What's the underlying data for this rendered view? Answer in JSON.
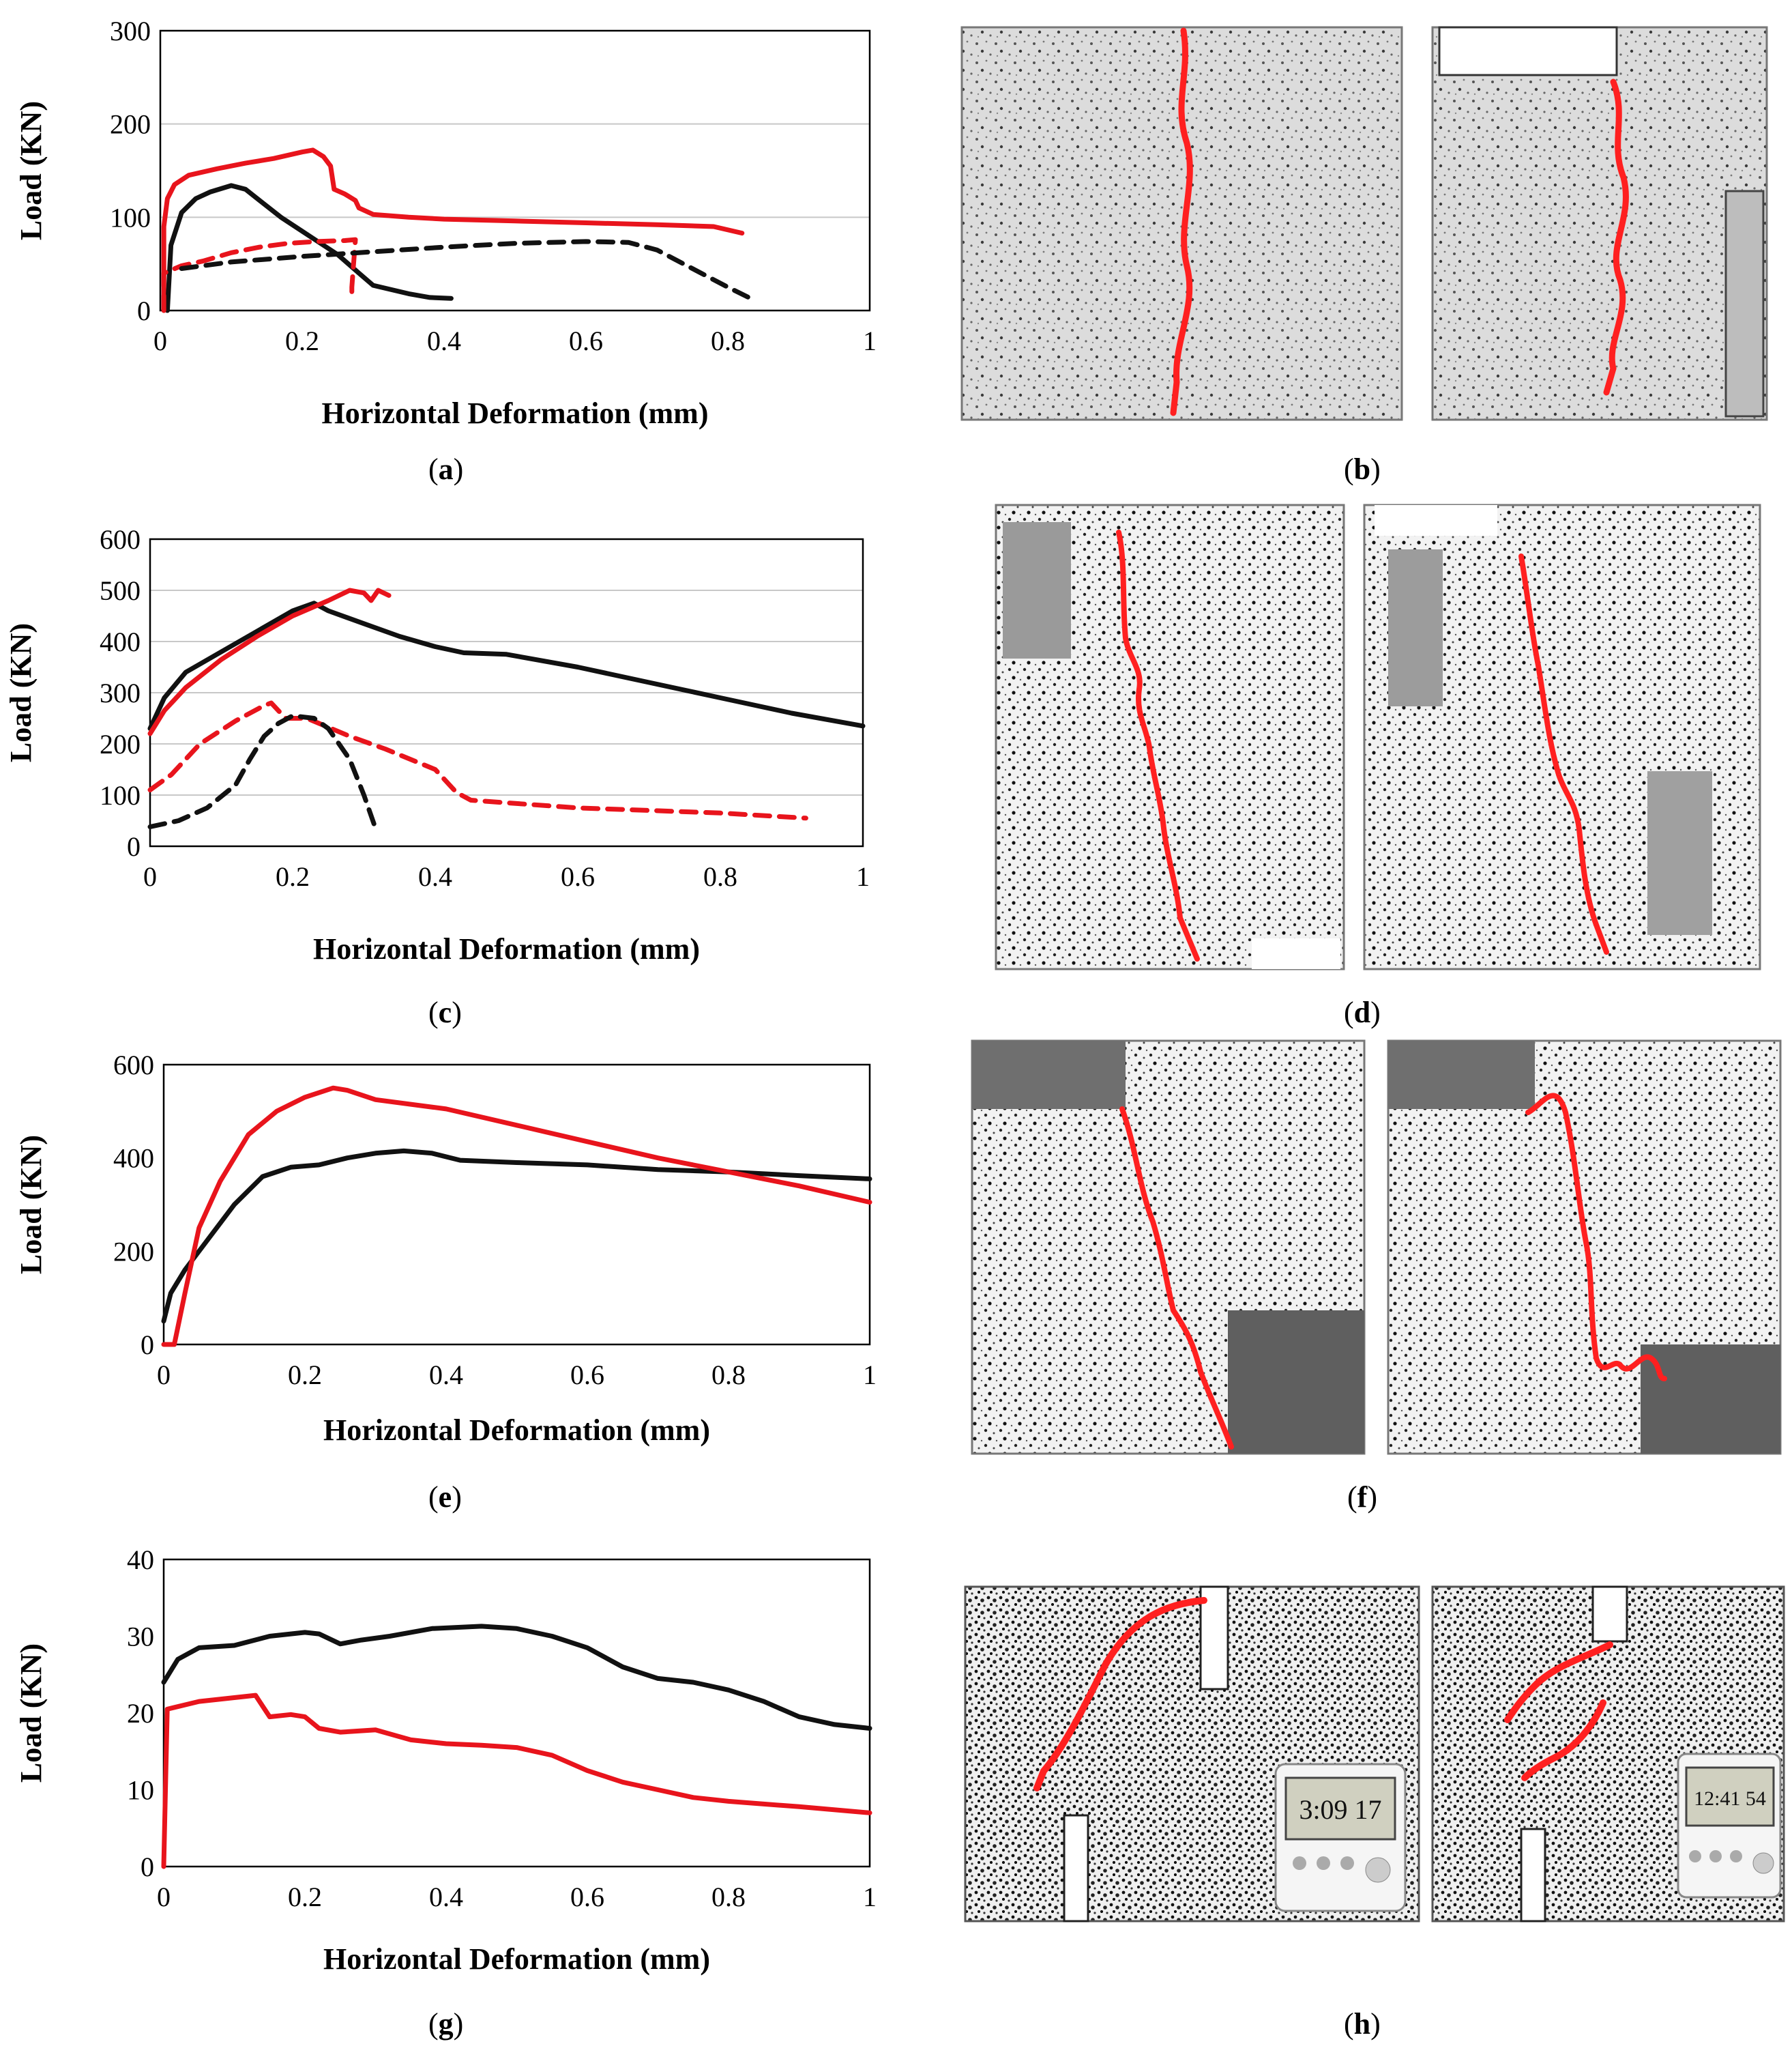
{
  "chart_data": [
    {
      "id": "a",
      "type": "line",
      "caption_letter": "a",
      "xlabel": "Horizontal Deformation (mm)",
      "ylabel": "Load (KN)",
      "xlim": [
        0,
        1
      ],
      "ylim": [
        0,
        300
      ],
      "xticks": [
        0,
        0.2,
        0.4,
        0.6,
        0.8,
        1
      ],
      "yticks": [
        0,
        100,
        200,
        300
      ],
      "xtick_labels": [
        "0",
        "0.2",
        "0.4",
        "0.6",
        "0.8",
        "1"
      ],
      "ytick_labels": [
        "0",
        "100",
        "200",
        "300"
      ],
      "grid": true,
      "series": [
        {
          "name": "red solid",
          "color": "#e8141c",
          "dash": false,
          "points": [
            [
              0.005,
              0
            ],
            [
              0.005,
              90
            ],
            [
              0.01,
              120
            ],
            [
              0.02,
              135
            ],
            [
              0.04,
              145
            ],
            [
              0.08,
              152
            ],
            [
              0.12,
              158
            ],
            [
              0.16,
              163
            ],
            [
              0.2,
              170
            ],
            [
              0.215,
              172
            ],
            [
              0.23,
              165
            ],
            [
              0.24,
              155
            ],
            [
              0.245,
              130
            ],
            [
              0.26,
              125
            ],
            [
              0.275,
              118
            ],
            [
              0.28,
              110
            ],
            [
              0.3,
              103
            ],
            [
              0.35,
              100
            ],
            [
              0.4,
              98
            ],
            [
              0.5,
              96
            ],
            [
              0.6,
              94
            ],
            [
              0.7,
              92
            ],
            [
              0.78,
              90
            ],
            [
              0.82,
              83
            ]
          ]
        },
        {
          "name": "black solid",
          "color": "#111111",
          "dash": false,
          "points": [
            [
              0.01,
              0
            ],
            [
              0.015,
              70
            ],
            [
              0.03,
              105
            ],
            [
              0.05,
              120
            ],
            [
              0.07,
              127
            ],
            [
              0.1,
              134
            ],
            [
              0.12,
              130
            ],
            [
              0.14,
              118
            ],
            [
              0.17,
              100
            ],
            [
              0.2,
              85
            ],
            [
              0.22,
              75
            ],
            [
              0.25,
              60
            ],
            [
              0.28,
              40
            ],
            [
              0.3,
              27
            ],
            [
              0.35,
              18
            ],
            [
              0.38,
              14
            ],
            [
              0.41,
              13
            ]
          ]
        },
        {
          "name": "red dashed",
          "color": "#e8141c",
          "dash": true,
          "points": [
            [
              0.005,
              0
            ],
            [
              0.005,
              40
            ],
            [
              0.03,
              48
            ],
            [
              0.06,
              53
            ],
            [
              0.1,
              62
            ],
            [
              0.14,
              68
            ],
            [
              0.18,
              72
            ],
            [
              0.22,
              74
            ],
            [
              0.26,
              75
            ],
            [
              0.275,
              76
            ],
            [
              0.27,
              25
            ],
            [
              0.27,
              12
            ]
          ]
        },
        {
          "name": "black dashed",
          "color": "#111111",
          "dash": true,
          "points": [
            [
              0.03,
              45
            ],
            [
              0.1,
              52
            ],
            [
              0.2,
              58
            ],
            [
              0.3,
              63
            ],
            [
              0.4,
              68
            ],
            [
              0.5,
              72
            ],
            [
              0.6,
              74
            ],
            [
              0.66,
              73
            ],
            [
              0.7,
              65
            ],
            [
              0.75,
              45
            ],
            [
              0.8,
              25
            ],
            [
              0.84,
              10
            ]
          ]
        }
      ]
    },
    {
      "id": "c",
      "type": "line",
      "caption_letter": "c",
      "xlabel": "Horizontal Deformation (mm)",
      "ylabel": "Load (KN)",
      "xlim": [
        0,
        1
      ],
      "ylim": [
        0,
        600
      ],
      "xticks": [
        0,
        0.2,
        0.4,
        0.6,
        0.8,
        1
      ],
      "yticks": [
        0,
        100,
        200,
        300,
        400,
        500,
        600
      ],
      "xtick_labels": [
        "0",
        "0.2",
        "0.4",
        "0.6",
        "0.8",
        "1"
      ],
      "ytick_labels": [
        "0",
        "100",
        "200",
        "300",
        "400",
        "500",
        "600"
      ],
      "grid": true,
      "series": [
        {
          "name": "black solid",
          "color": "#111111",
          "dash": false,
          "points": [
            [
              0,
              230
            ],
            [
              0.02,
              290
            ],
            [
              0.05,
              340
            ],
            [
              0.1,
              380
            ],
            [
              0.15,
              420
            ],
            [
              0.2,
              460
            ],
            [
              0.23,
              475
            ],
            [
              0.25,
              460
            ],
            [
              0.3,
              435
            ],
            [
              0.35,
              410
            ],
            [
              0.4,
              390
            ],
            [
              0.44,
              378
            ],
            [
              0.5,
              375
            ],
            [
              0.6,
              350
            ],
            [
              0.7,
              320
            ],
            [
              0.8,
              290
            ],
            [
              0.9,
              260
            ],
            [
              1,
              235
            ]
          ]
        },
        {
          "name": "red solid",
          "color": "#e8141c",
          "dash": false,
          "points": [
            [
              0,
              220
            ],
            [
              0.02,
              265
            ],
            [
              0.05,
              310
            ],
            [
              0.1,
              365
            ],
            [
              0.15,
              410
            ],
            [
              0.2,
              450
            ],
            [
              0.25,
              480
            ],
            [
              0.28,
              500
            ],
            [
              0.3,
              495
            ],
            [
              0.31,
              480
            ],
            [
              0.32,
              500
            ],
            [
              0.335,
              490
            ]
          ]
        },
        {
          "name": "red dashed",
          "color": "#e8141c",
          "dash": true,
          "points": [
            [
              0,
              110
            ],
            [
              0.03,
              140
            ],
            [
              0.07,
              200
            ],
            [
              0.12,
              245
            ],
            [
              0.16,
              275
            ],
            [
              0.17,
              280
            ],
            [
              0.19,
              250
            ],
            [
              0.22,
              250
            ],
            [
              0.28,
              215
            ],
            [
              0.33,
              190
            ],
            [
              0.4,
              150
            ],
            [
              0.43,
              105
            ],
            [
              0.45,
              90
            ],
            [
              0.5,
              85
            ],
            [
              0.6,
              75
            ],
            [
              0.7,
              70
            ],
            [
              0.8,
              65
            ],
            [
              0.92,
              55
            ]
          ]
        },
        {
          "name": "black dashed",
          "color": "#111111",
          "dash": true,
          "points": [
            [
              0,
              38
            ],
            [
              0.04,
              50
            ],
            [
              0.08,
              75
            ],
            [
              0.12,
              120
            ],
            [
              0.14,
              170
            ],
            [
              0.16,
              215
            ],
            [
              0.18,
              240
            ],
            [
              0.2,
              255
            ],
            [
              0.23,
              250
            ],
            [
              0.25,
              230
            ],
            [
              0.28,
              170
            ],
            [
              0.3,
              100
            ],
            [
              0.315,
              40
            ]
          ]
        }
      ]
    },
    {
      "id": "e",
      "type": "line",
      "caption_letter": "e",
      "xlabel": "Horizontal Deformation (mm)",
      "ylabel": "Load (KN)",
      "xlim": [
        0,
        1
      ],
      "ylim": [
        0,
        600
      ],
      "xticks": [
        0,
        0.2,
        0.4,
        0.6,
        0.8,
        1
      ],
      "yticks": [
        0,
        200,
        400,
        600
      ],
      "xtick_labels": [
        "0",
        "0.2",
        "0.4",
        "0.6",
        "0.8",
        "1"
      ],
      "ytick_labels": [
        "0",
        "200",
        "400",
        "600"
      ],
      "grid": false,
      "series": [
        {
          "name": "black solid",
          "color": "#111111",
          "dash": false,
          "points": [
            [
              0,
              50
            ],
            [
              0.01,
              110
            ],
            [
              0.03,
              160
            ],
            [
              0.06,
              220
            ],
            [
              0.1,
              300
            ],
            [
              0.14,
              360
            ],
            [
              0.18,
              380
            ],
            [
              0.22,
              385
            ],
            [
              0.26,
              400
            ],
            [
              0.3,
              410
            ],
            [
              0.34,
              415
            ],
            [
              0.38,
              410
            ],
            [
              0.42,
              395
            ],
            [
              0.5,
              390
            ],
            [
              0.6,
              385
            ],
            [
              0.7,
              375
            ],
            [
              0.8,
              370
            ],
            [
              0.9,
              362
            ],
            [
              1,
              355
            ]
          ]
        },
        {
          "name": "red solid",
          "color": "#e8141c",
          "dash": false,
          "points": [
            [
              0,
              0
            ],
            [
              0.015,
              0
            ],
            [
              0.03,
              110
            ],
            [
              0.05,
              250
            ],
            [
              0.08,
              350
            ],
            [
              0.12,
              450
            ],
            [
              0.16,
              500
            ],
            [
              0.2,
              530
            ],
            [
              0.24,
              550
            ],
            [
              0.26,
              545
            ],
            [
              0.3,
              525
            ],
            [
              0.4,
              505
            ],
            [
              0.5,
              470
            ],
            [
              0.6,
              435
            ],
            [
              0.7,
              400
            ],
            [
              0.8,
              370
            ],
            [
              0.9,
              340
            ],
            [
              1,
              305
            ]
          ]
        }
      ]
    },
    {
      "id": "g",
      "type": "line",
      "caption_letter": "g",
      "xlabel": "Horizontal Deformation (mm)",
      "ylabel": "Load (KN)",
      "xlim": [
        0,
        1
      ],
      "ylim": [
        0,
        40
      ],
      "xticks": [
        0,
        0.2,
        0.4,
        0.6,
        0.8,
        1
      ],
      "yticks": [
        0,
        10,
        20,
        30,
        40
      ],
      "xtick_labels": [
        "0",
        "0.2",
        "0.4",
        "0.6",
        "0.8",
        "1"
      ],
      "ytick_labels": [
        "0",
        "10",
        "20",
        "30",
        "40"
      ],
      "grid": false,
      "series": [
        {
          "name": "black solid",
          "color": "#111111",
          "dash": false,
          "points": [
            [
              0,
              24
            ],
            [
              0.02,
              27
            ],
            [
              0.05,
              28.5
            ],
            [
              0.1,
              28.8
            ],
            [
              0.15,
              30
            ],
            [
              0.2,
              30.5
            ],
            [
              0.22,
              30.3
            ],
            [
              0.25,
              29
            ],
            [
              0.28,
              29.5
            ],
            [
              0.32,
              30
            ],
            [
              0.38,
              31
            ],
            [
              0.45,
              31.3
            ],
            [
              0.5,
              31
            ],
            [
              0.55,
              30
            ],
            [
              0.6,
              28.5
            ],
            [
              0.65,
              26
            ],
            [
              0.7,
              24.5
            ],
            [
              0.75,
              24
            ],
            [
              0.8,
              23
            ],
            [
              0.85,
              21.5
            ],
            [
              0.9,
              19.5
            ],
            [
              0.95,
              18.5
            ],
            [
              1,
              18
            ]
          ]
        },
        {
          "name": "red solid",
          "color": "#e8141c",
          "dash": false,
          "points": [
            [
              0,
              0
            ],
            [
              0.005,
              20.5
            ],
            [
              0.05,
              21.5
            ],
            [
              0.1,
              22
            ],
            [
              0.13,
              22.3
            ],
            [
              0.15,
              19.5
            ],
            [
              0.18,
              19.8
            ],
            [
              0.2,
              19.5
            ],
            [
              0.22,
              18
            ],
            [
              0.25,
              17.5
            ],
            [
              0.3,
              17.8
            ],
            [
              0.35,
              16.5
            ],
            [
              0.4,
              16
            ],
            [
              0.45,
              15.8
            ],
            [
              0.5,
              15.5
            ],
            [
              0.55,
              14.5
            ],
            [
              0.6,
              12.5
            ],
            [
              0.65,
              11
            ],
            [
              0.7,
              10
            ],
            [
              0.75,
              9
            ],
            [
              0.8,
              8.5
            ],
            [
              0.9,
              7.8
            ],
            [
              1,
              7
            ]
          ]
        }
      ]
    }
  ],
  "captions": {
    "a": "a",
    "b": "b",
    "c": "c",
    "d": "d",
    "e": "e",
    "f": "f",
    "g": "g",
    "h": "h"
  },
  "timers": {
    "h_left": "3:09 17",
    "h_right": "12:41 54"
  }
}
